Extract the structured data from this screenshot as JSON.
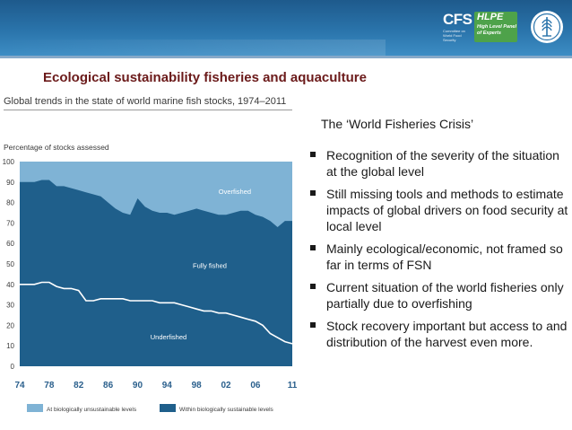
{
  "header": {
    "cfs_logo": {
      "name": "CFS",
      "subtitle": "Committee on World Food Security"
    },
    "hlpe_logo": {
      "name": "HLPE",
      "subtitle": "High Level Panel of Experts"
    },
    "fao_logo": {
      "icon": "fao-wheat-emblem-icon"
    },
    "colors": {
      "band": "#2a74ab",
      "hlpe_green": "#4ea24a"
    }
  },
  "slide": {
    "title": "Ecological sustainability fisheries and aquaculture",
    "crisis_title": "The ‘World Fisheries Crisis’",
    "bullets": [
      "Recognition of the severity of the situation at the global level",
      "Still missing tools and methods to estimate impacts of global drivers on food security at local level",
      "Mainly ecological/economic, not framed so far in terms of FSN",
      "Current situation of the world fisheries only partially due to overfishing",
      "Stock recovery important but access to and distribution of the harvest even more."
    ]
  },
  "chart_data": {
    "type": "area",
    "title": "Global trends in the state of world marine fish stocks, 1974–2011",
    "ylabel": "Percentage of stocks assessed",
    "xlabel": "",
    "ylim": [
      0,
      100
    ],
    "xlim": [
      1974,
      2011
    ],
    "y_ticks": [
      0,
      10,
      20,
      30,
      40,
      50,
      60,
      70,
      80,
      90,
      100
    ],
    "x_ticks": [
      "74",
      "78",
      "82",
      "86",
      "90",
      "94",
      "98",
      "02",
      "06",
      "11"
    ],
    "x_tick_years": [
      1974,
      1978,
      1982,
      1986,
      1990,
      1994,
      1998,
      2002,
      2006,
      2011
    ],
    "region_labels": {
      "overfished": "Overfished",
      "fully_fished": "Fully fished",
      "underfished": "Underfished"
    },
    "legend": {
      "placement": "bottom",
      "items": [
        {
          "label": "At biologically unsustainable levels",
          "color": "#7fb3d5"
        },
        {
          "label": "Within biologically sustainable levels",
          "color": "#1f5f8b"
        }
      ]
    },
    "colors": {
      "unsustainable": "#7fb3d5",
      "sustainable": "#1f5f8b",
      "underfished_line": "#ffffff"
    },
    "x": [
      1974,
      1975,
      1976,
      1977,
      1978,
      1979,
      1980,
      1981,
      1982,
      1983,
      1984,
      1985,
      1986,
      1987,
      1988,
      1989,
      1990,
      1991,
      1992,
      1993,
      1994,
      1995,
      1996,
      1997,
      1998,
      1999,
      2000,
      2001,
      2002,
      2003,
      2004,
      2005,
      2006,
      2007,
      2008,
      2009,
      2010,
      2011
    ],
    "series": [
      {
        "name": "Within biologically sustainable levels",
        "values": [
          90,
          90,
          90,
          91,
          91,
          88,
          88,
          87,
          86,
          85,
          84,
          83,
          80,
          77,
          75,
          74,
          82,
          78,
          76,
          75,
          75,
          74,
          75,
          76,
          77,
          76,
          75,
          74,
          74,
          75,
          76,
          76,
          74,
          73,
          71,
          68,
          71,
          71
        ]
      },
      {
        "name": "Underfished",
        "values": [
          40,
          40,
          40,
          41,
          41,
          39,
          38,
          38,
          37,
          32,
          32,
          33,
          33,
          33,
          33,
          32,
          32,
          32,
          32,
          31,
          31,
          31,
          30,
          29,
          28,
          27,
          27,
          26,
          26,
          25,
          24,
          23,
          22,
          20,
          16,
          14,
          12,
          11
        ]
      }
    ]
  }
}
